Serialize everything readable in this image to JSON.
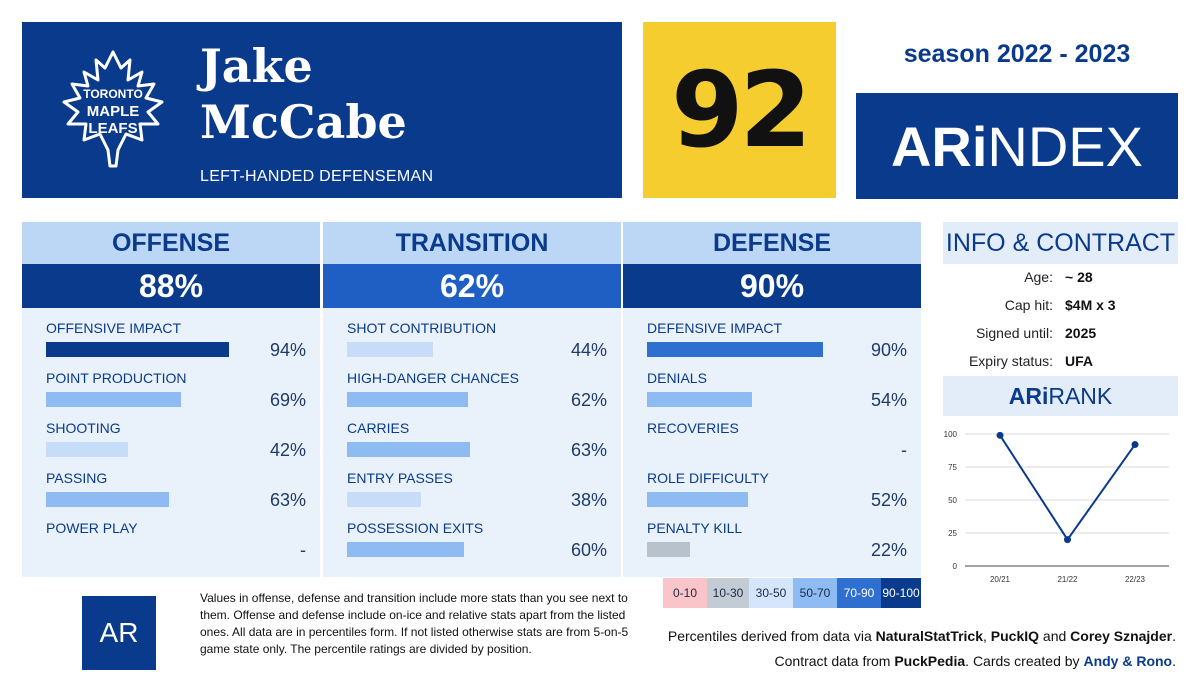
{
  "player": {
    "first_name": "Jake",
    "last_name": "McCabe",
    "position": "LEFT-HANDED DEFENSEMAN",
    "team_logo_text": [
      "TORONTO",
      "MAPLE",
      "LEAFS"
    ],
    "rating": "92"
  },
  "season": "season 2022 - 2023",
  "brand": {
    "ar_bold": "ARi",
    "ar_rest": "NDEX",
    "rank_bold": "ARi",
    "rank_rest": "RANK",
    "logo": "AR"
  },
  "colors": {
    "navy": "#0a3a8c",
    "yellow": "#f6cd2f",
    "light": "#bcd6f6",
    "panel": "#e9f1fb"
  },
  "offense": {
    "title": "OFFENSE",
    "pct": "88%",
    "stats": [
      {
        "label": "OFFENSIVE IMPACT",
        "value": "94%",
        "level": 94,
        "color": "#0a3a8c"
      },
      {
        "label": "POINT PRODUCTION",
        "value": "69%",
        "level": 69,
        "color": "#8ebcf2"
      },
      {
        "label": "SHOOTING",
        "value": "42%",
        "level": 42,
        "color": "#c6dcf8"
      },
      {
        "label": "PASSING",
        "value": "63%",
        "level": 63,
        "color": "#8ebcf2"
      },
      {
        "label": "POWER PLAY",
        "value": "-",
        "level": 0,
        "color": "#8ebcf2"
      }
    ]
  },
  "transition": {
    "title": "TRANSITION",
    "pct": "62%",
    "stats": [
      {
        "label": "SHOT CONTRIBUTION",
        "value": "44%",
        "level": 44,
        "color": "#c6dcf8"
      },
      {
        "label": "HIGH-DANGER CHANCES",
        "value": "62%",
        "level": 62,
        "color": "#8ebcf2"
      },
      {
        "label": "CARRIES",
        "value": "63%",
        "level": 63,
        "color": "#8ebcf2"
      },
      {
        "label": "ENTRY PASSES",
        "value": "38%",
        "level": 38,
        "color": "#c6dcf8"
      },
      {
        "label": "POSSESSION EXITS",
        "value": "60%",
        "level": 60,
        "color": "#8ebcf2"
      }
    ]
  },
  "defense": {
    "title": "DEFENSE",
    "pct": "90%",
    "stats": [
      {
        "label": "DEFENSIVE IMPACT",
        "value": "90%",
        "level": 90,
        "color": "#2f6fd0"
      },
      {
        "label": "DENIALS",
        "value": "54%",
        "level": 54,
        "color": "#8ebcf2"
      },
      {
        "label": "RECOVERIES",
        "value": "-",
        "level": 0,
        "color": "#8ebcf2"
      },
      {
        "label": "ROLE DIFFICULTY",
        "value": "52%",
        "level": 52,
        "color": "#8ebcf2"
      },
      {
        "label": "PENALTY KILL",
        "value": "22%",
        "level": 22,
        "color": "#b8c2cc"
      }
    ]
  },
  "info": {
    "title": "INFO & CONTRACT",
    "rows": [
      {
        "key": "Age:",
        "value": "~ 28"
      },
      {
        "key": "Cap hit:",
        "value": "$4M x 3"
      },
      {
        "key": "Signed until:",
        "value": "2025"
      },
      {
        "key": "Expiry status:",
        "value": "UFA"
      }
    ]
  },
  "chart_data": {
    "type": "line",
    "categories": [
      "20/21",
      "21/22",
      "22/23"
    ],
    "values": [
      99,
      20,
      92
    ],
    "yticks": [
      0,
      25,
      50,
      75,
      100
    ],
    "ylim": [
      0,
      100
    ],
    "grid": true
  },
  "legend": [
    {
      "label": "0-10",
      "color": "#f9c5c8"
    },
    {
      "label": "10-30",
      "color": "#c3ccd4"
    },
    {
      "label": "30-50",
      "color": "#d4e6fb"
    },
    {
      "label": "50-70",
      "color": "#8ebcf2"
    },
    {
      "label": "70-90",
      "color": "#2f6fd0",
      "text": "#ffffff"
    },
    {
      "label": "90-100",
      "color": "#0a3a8c",
      "text": "#ffffff"
    }
  ],
  "footer": {
    "note": "Values in offense, defense and transition include more stats than you see next to them. Offense and defense include on-ice and relative stats apart from the listed ones. All data are in percentiles form. If not listed otherwise stats are from 5-on-5 game state only. The percentile ratings are divided by position.",
    "src1_a": "Percentiles derived from data via ",
    "src1_b": "NaturalStatTrick",
    "src1_c": ", ",
    "src1_d": "PuckIQ",
    "src1_e": " and ",
    "src1_f": "Corey Sznajder",
    "src1_g": ".",
    "src2_a": "Contract data from ",
    "src2_b": "PuckPedia",
    "src2_c": ". Cards created by ",
    "src2_d": "Andy & Rono",
    "src2_e": "."
  }
}
